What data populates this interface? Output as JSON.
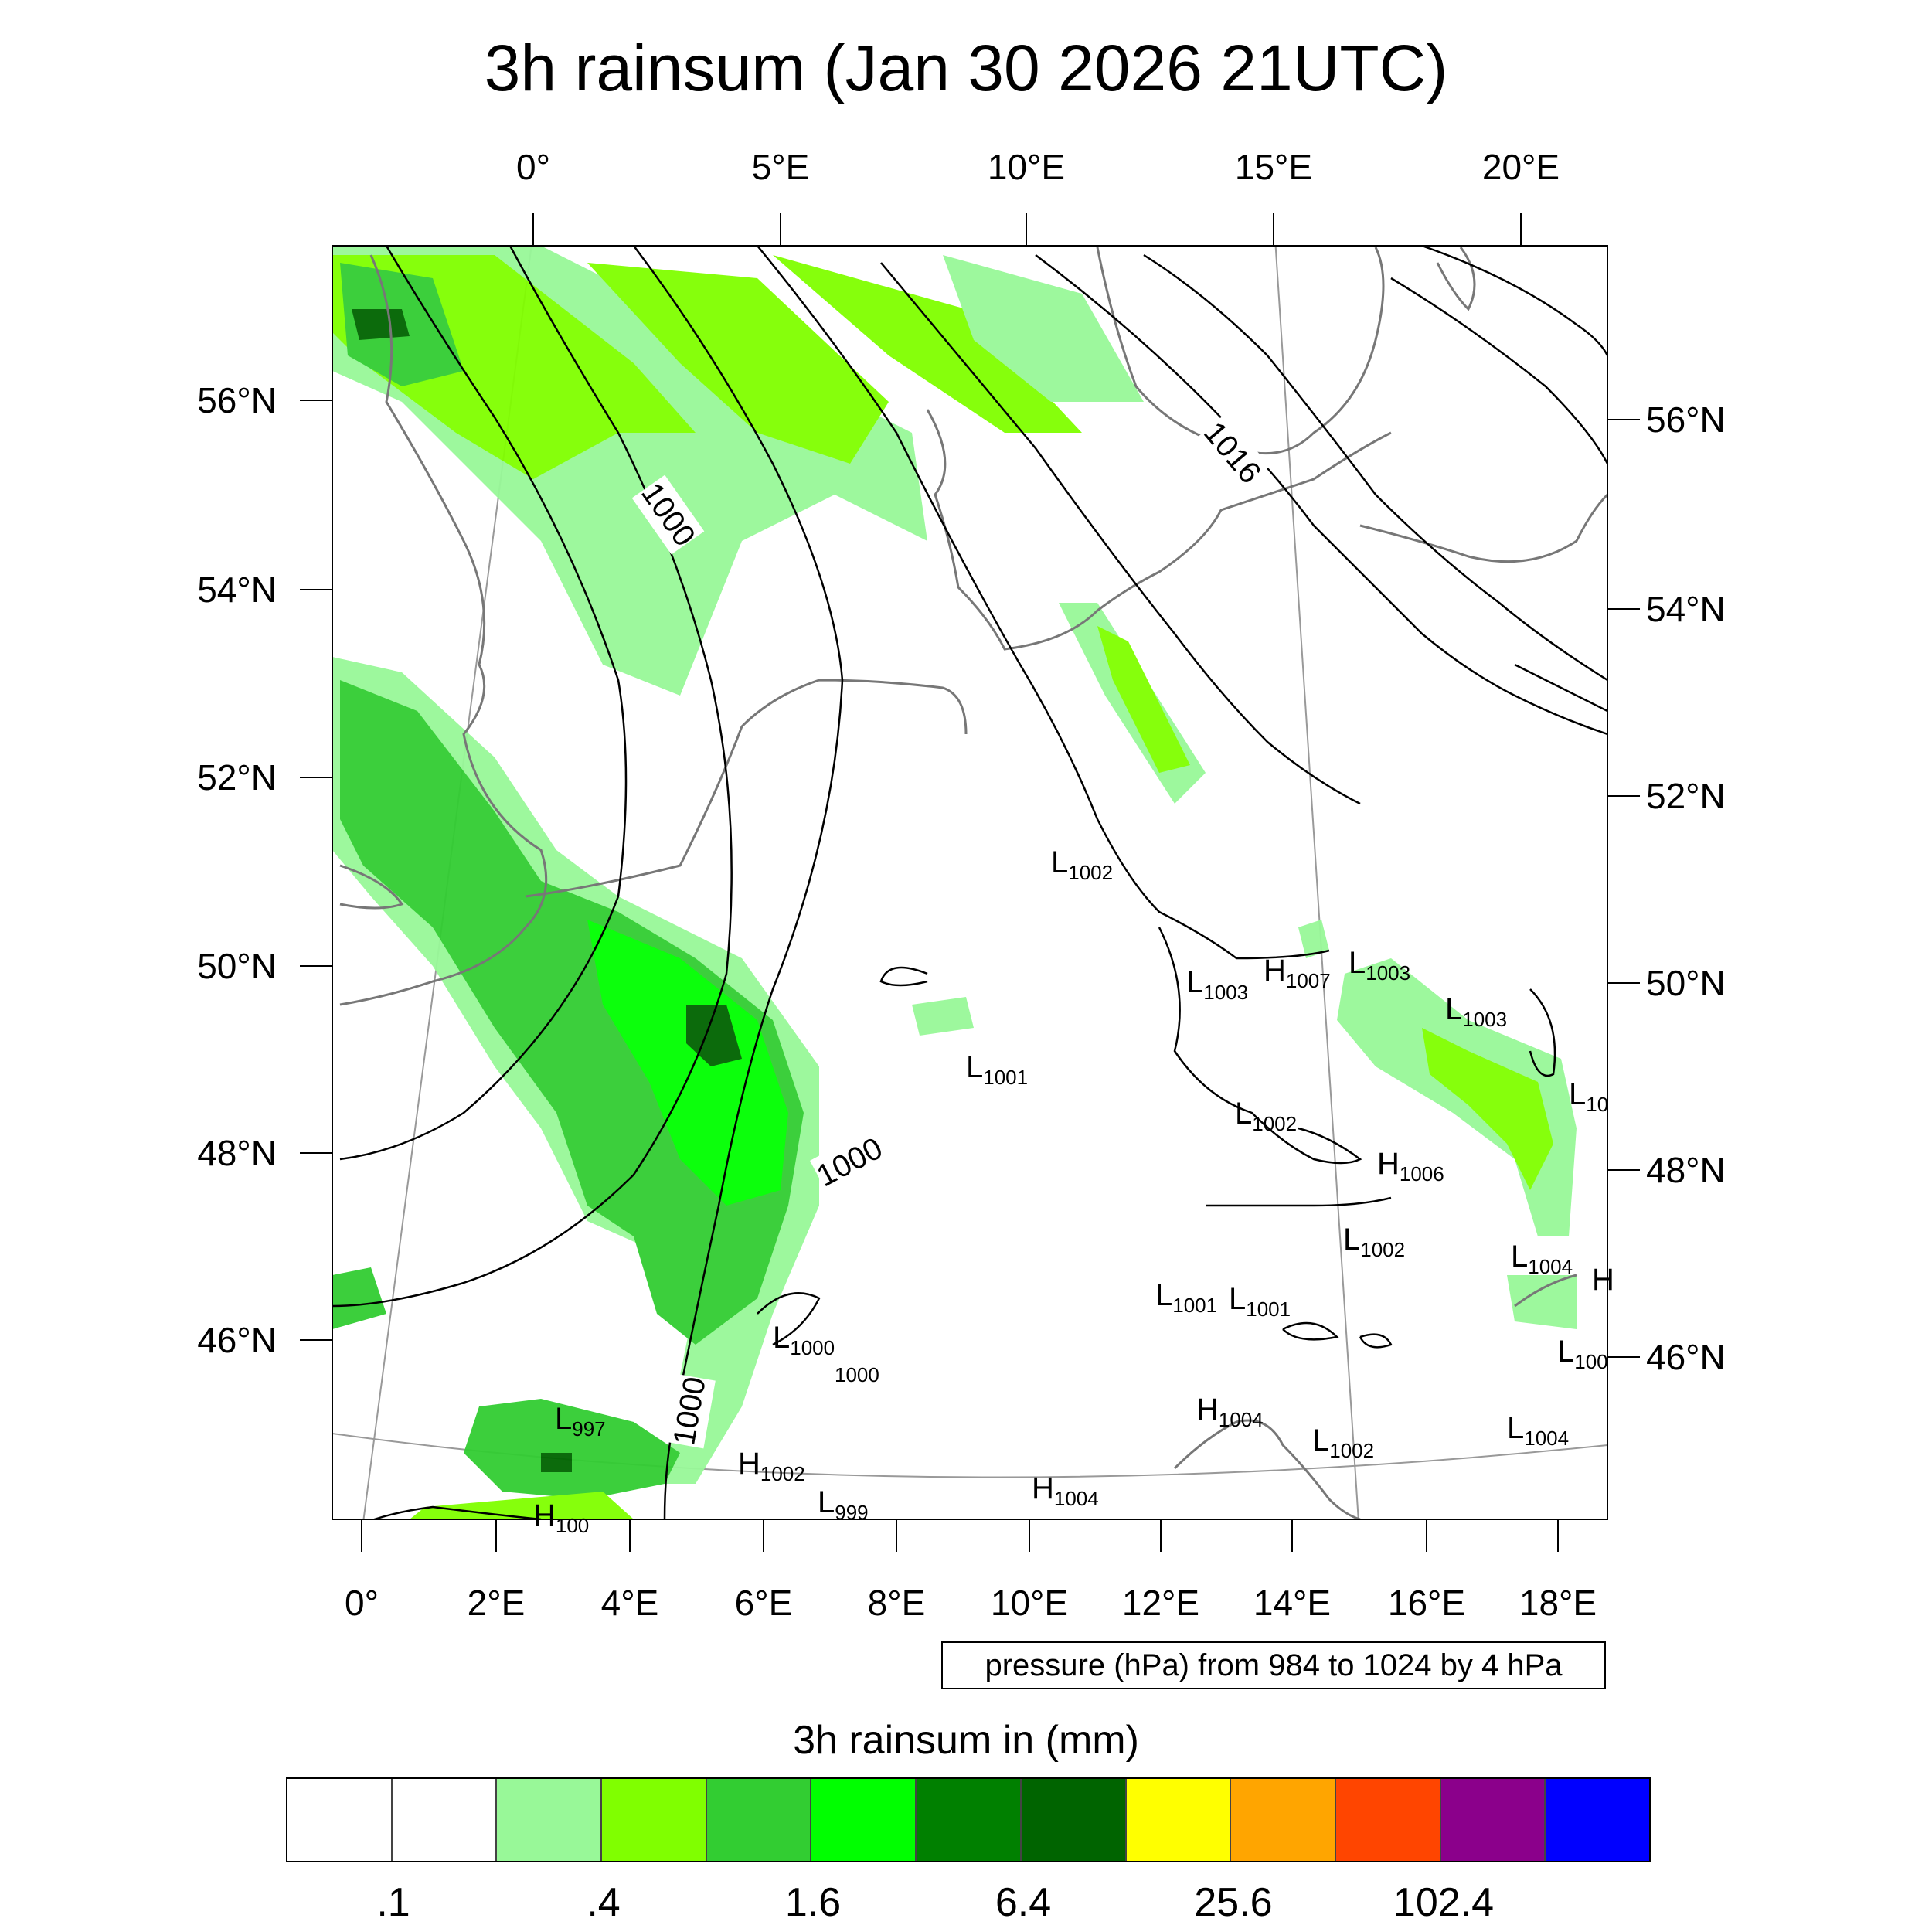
{
  "title": "3h rainsum (Jan 30 2026 21UTC)",
  "top_lon_labels": [
    "0°",
    "5°E",
    "10°E",
    "15°E",
    "20°E"
  ],
  "bottom_lon_labels": [
    "0°",
    "2°E",
    "4°E",
    "6°E",
    "8°E",
    "10°E",
    "12°E",
    "14°E",
    "16°E",
    "18°E"
  ],
  "left_lat_labels": [
    "56°N",
    "54°N",
    "52°N",
    "50°N",
    "48°N",
    "46°N"
  ],
  "right_lat_labels": [
    "56°N",
    "54°N",
    "52°N",
    "50°N",
    "48°N",
    "46°N"
  ],
  "contour_labels": [
    "1000",
    "1000",
    "1000",
    "1016",
    "1000"
  ],
  "pressure_centers": [
    {
      "t": "L",
      "v": "1002"
    },
    {
      "t": "L",
      "v": "1003"
    },
    {
      "t": "L",
      "v": "1003"
    },
    {
      "t": "H",
      "v": "1007"
    },
    {
      "t": "L",
      "v": "1003"
    },
    {
      "t": "L",
      "v": "1001"
    },
    {
      "t": "L",
      "v": "1002"
    },
    {
      "t": "H",
      "v": "1006"
    },
    {
      "t": "L",
      "v": "10"
    },
    {
      "t": "L",
      "v": "1002"
    },
    {
      "t": "L",
      "v": "1004"
    },
    {
      "t": "H",
      "v": ""
    },
    {
      "t": "L",
      "v": "1001"
    },
    {
      "t": "L",
      "v": "1001"
    },
    {
      "t": "L",
      "v": "1000"
    },
    {
      "t": "",
      "v": "1000"
    },
    {
      "t": "L",
      "v": "997"
    },
    {
      "t": "H",
      "v": "1004"
    },
    {
      "t": "L",
      "v": "1002"
    },
    {
      "t": "L",
      "v": "1004"
    },
    {
      "t": "L",
      "v": "100"
    },
    {
      "t": "H",
      "v": "1002"
    },
    {
      "t": "L",
      "v": "999"
    },
    {
      "t": "H",
      "v": "1004"
    },
    {
      "t": "H",
      "v": "100"
    }
  ],
  "pressure_note": "pressure (hPa) from 984 to 1024 by 4 hPa",
  "colorbar": {
    "title": "3h rainsum in (mm)",
    "colors": [
      "#ffffff",
      "#ffffff",
      "#98f898",
      "#80ff00",
      "#32cd32",
      "#00ff00",
      "#008000",
      "#006400",
      "#ffff00",
      "#ffa500",
      "#ff4500",
      "#8b008b",
      "#0000ff"
    ],
    "tick_labels": [
      ".1",
      ".4",
      "1.6",
      "6.4",
      "25.6",
      "102.4"
    ]
  }
}
